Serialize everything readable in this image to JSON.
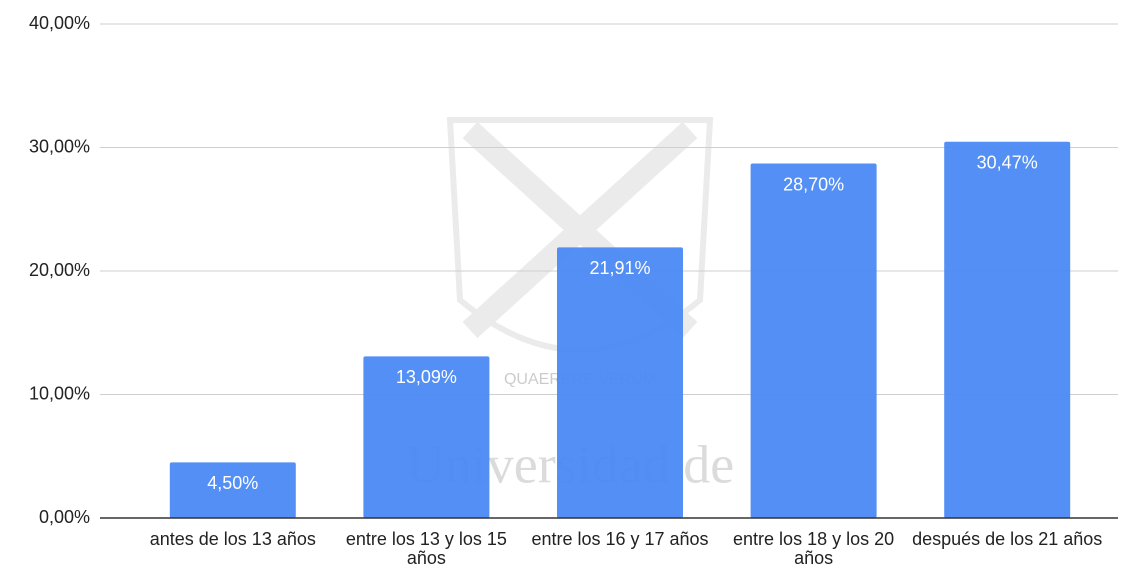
{
  "chart_data": {
    "type": "bar",
    "categories": [
      "antes de los 13 años",
      "entre los 13 y los 15 años",
      "entre los 16 y 17 años",
      "entre los 18 y los 20 años",
      "después de los 21 años"
    ],
    "values": [
      4.5,
      13.09,
      21.91,
      28.7,
      30.47
    ],
    "value_labels": [
      "4,50%",
      "13,09%",
      "21,91%",
      "28,70%",
      "30,47%"
    ],
    "color": "#4a89f3",
    "ylim": [
      0,
      40
    ],
    "yticks": [
      {
        "value": 0,
        "label": "0,00%"
      },
      {
        "value": 10,
        "label": "10,00%"
      },
      {
        "value": 20,
        "label": "20,00%"
      },
      {
        "value": 30,
        "label": "30,00%"
      },
      {
        "value": 40,
        "label": "40,00%"
      }
    ],
    "grid": true,
    "watermark": [
      "QUAERERE VERUM",
      "Universidad de"
    ]
  }
}
